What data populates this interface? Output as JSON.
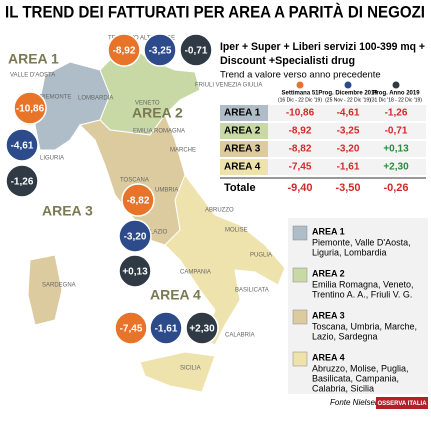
{
  "header": {
    "title": "IL TREND DEI FATTURATI PER AREA A PARITÀ DI NEGOZI"
  },
  "map": {
    "regions": [
      "TRENTINO ALTO ADIGE",
      "VALLE D'AOSTA",
      "LOMBARDIA",
      "FRIULI VENEZIA GIULIA",
      "VENETO",
      "PIEMONTE",
      "EMILIA ROMAGNA",
      "LIGURIA",
      "MARCHE",
      "TOSCANA",
      "UMBRIA",
      "ABRUZZO",
      "LAZIO",
      "MOLISE",
      "PUGLIA",
      "CAMPANIA",
      "BASILICATA",
      "SARDEGNA",
      "CALABRIA",
      "SICILIA"
    ],
    "areas": [
      "AREA 1",
      "AREA 2",
      "AREA 3",
      "AREA 4"
    ],
    "bubbles": [
      [
        "-10,86",
        "-4,61",
        "-1,26"
      ],
      [
        "-8,92",
        "-3,25",
        "-0,71"
      ],
      [
        "-8,82",
        "-3,20",
        "+0,13"
      ],
      [
        "-7,45",
        "-1,61",
        "+2,30"
      ]
    ]
  },
  "panel": {
    "title": "Iper + Super + Liberi servizi 100-399 mq + Discount +Specialisti drug",
    "subtitle": "Trend a valore verso anno precedente",
    "columns": [
      {
        "name": "Settimana 51",
        "period": "(16 Dic - 22 Dic '19)"
      },
      {
        "name": "Prog. Dicembre 2019",
        "period": "(25 Nov - 22 Dic '19)"
      },
      {
        "name": "Prog. Anno 2019",
        "period": "(31 Dic '18 - 22 Dic '19)"
      }
    ],
    "rows": [
      [
        "AREA 1",
        "-10,86",
        "-4,61",
        "-1,26"
      ],
      [
        "AREA 2",
        "-8,92",
        "-3,25",
        "-0,71"
      ],
      [
        "AREA 3",
        "-8,82",
        "-3,20",
        "+0,13"
      ],
      [
        "AREA 4",
        "-7,45",
        "-1,61",
        "+2,30"
      ],
      [
        "Totale",
        "-9,40",
        "-3,50",
        "-0,26"
      ]
    ]
  },
  "legend": [
    {
      "name": "AREA 1",
      "lines": [
        "Piemonte, Valle D'Aosta,",
        "Liguria, Lombardia"
      ]
    },
    {
      "name": "AREA 2",
      "lines": [
        "Emilia Romagna, Veneto,",
        "Trentino A. A., Friuli V. G."
      ]
    },
    {
      "name": "AREA 3",
      "lines": [
        "Toscana, Umbria, Marche,",
        "Lazio, Sardegna"
      ]
    },
    {
      "name": "AREA 4",
      "lines": [
        "Abruzzo, Molise, Puglia,",
        "Basilicata, Campania,",
        "Calabria, Sicilia"
      ]
    }
  ],
  "footer": {
    "source": "Fonte Nielsen",
    "logo": "OSSERVA ITALIA"
  }
}
